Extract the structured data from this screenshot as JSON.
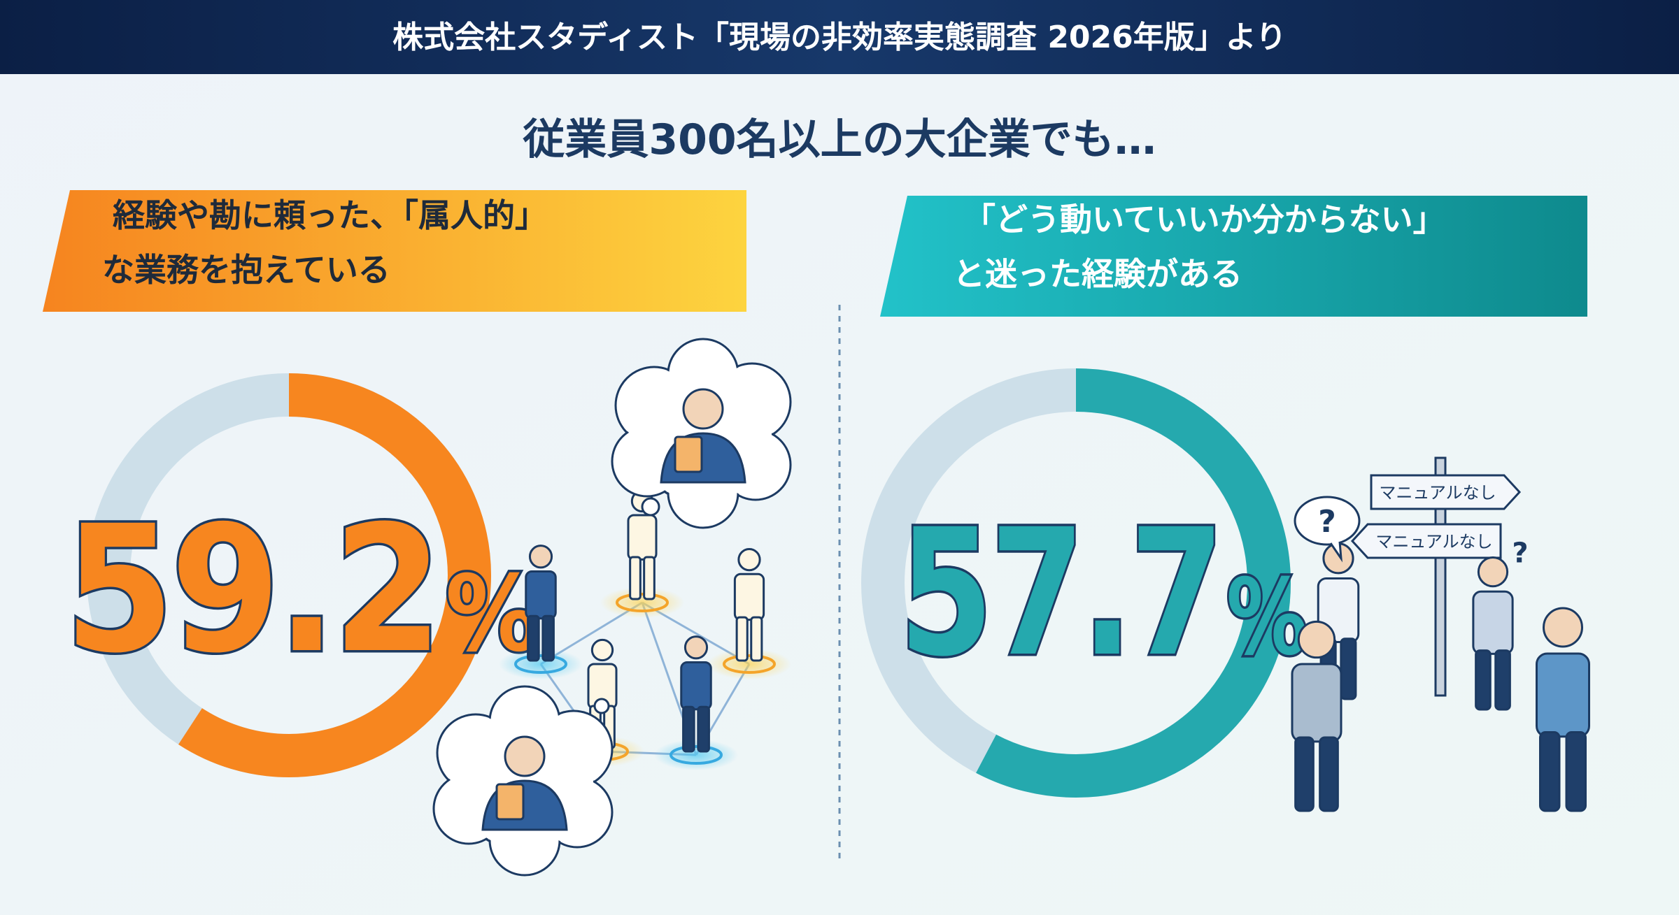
{
  "header": {
    "title": "株式会社スタディスト「現場の非効率実態調査 2026年版」より"
  },
  "headline": "従業員300名以上の大企業でも…",
  "chart_data": [
    {
      "type": "donut",
      "title_lines": [
        "経験や勘に頼った、「属人的」",
        "な業務を抱えている"
      ],
      "values": [
        59.2
      ],
      "value_labels": [
        "59.2%"
      ],
      "color": "#f7861f",
      "track_color": "#cddfe9"
    },
    {
      "type": "donut",
      "title_lines": [
        "「どう動いていいか分からない」",
        "と迷った経験がある"
      ],
      "values": [
        57.7
      ],
      "value_labels": [
        "57.7%"
      ],
      "color": "#25a9ae",
      "track_color": "#cddfe9"
    }
  ],
  "illustration": {
    "signs": [
      "マニュアルなし",
      "マニュアルなし"
    ],
    "question_mark": "?"
  }
}
